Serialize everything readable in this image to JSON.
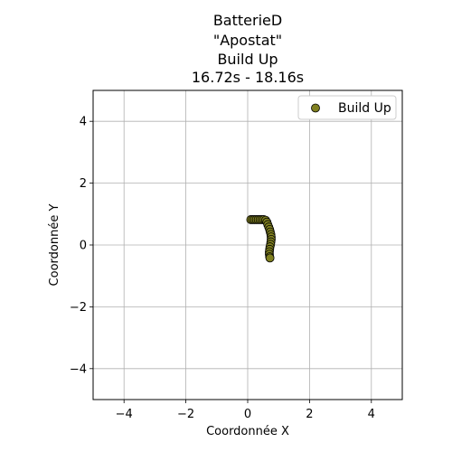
{
  "chart_data": {
    "type": "scatter",
    "title_lines": [
      "BatterieD",
      "\"Apostat\"",
      "Build Up",
      "16.72s - 18.16s"
    ],
    "xlabel": "Coordonnée X",
    "ylabel": "Coordonnée Y",
    "xlim": [
      -5,
      5
    ],
    "ylim": [
      -5,
      5
    ],
    "xticks": [
      -4,
      -2,
      0,
      2,
      4
    ],
    "yticks": [
      -4,
      -2,
      0,
      2,
      4
    ],
    "xtick_labels": [
      "−4",
      "−2",
      "0",
      "2",
      "4"
    ],
    "ytick_labels": [
      "−4",
      "−2",
      "0",
      "2",
      "4"
    ],
    "grid": true,
    "legend": {
      "position": "upper-right",
      "entries": [
        "Build Up"
      ]
    },
    "series": [
      {
        "name": "Build Up",
        "color": "#808020",
        "edge_color": "#000000",
        "points": [
          {
            "x": 0.1,
            "y": 0.82
          },
          {
            "x": 0.16,
            "y": 0.82
          },
          {
            "x": 0.22,
            "y": 0.82
          },
          {
            "x": 0.28,
            "y": 0.82
          },
          {
            "x": 0.34,
            "y": 0.82
          },
          {
            "x": 0.4,
            "y": 0.82
          },
          {
            "x": 0.46,
            "y": 0.82
          },
          {
            "x": 0.52,
            "y": 0.82
          },
          {
            "x": 0.58,
            "y": 0.8
          },
          {
            "x": 0.62,
            "y": 0.74
          },
          {
            "x": 0.65,
            "y": 0.66
          },
          {
            "x": 0.68,
            "y": 0.58
          },
          {
            "x": 0.71,
            "y": 0.5
          },
          {
            "x": 0.73,
            "y": 0.42
          },
          {
            "x": 0.75,
            "y": 0.34
          },
          {
            "x": 0.76,
            "y": 0.26
          },
          {
            "x": 0.76,
            "y": 0.18
          },
          {
            "x": 0.75,
            "y": 0.1
          },
          {
            "x": 0.74,
            "y": 0.02
          },
          {
            "x": 0.72,
            "y": -0.06
          },
          {
            "x": 0.71,
            "y": -0.14
          },
          {
            "x": 0.7,
            "y": -0.22
          },
          {
            "x": 0.7,
            "y": -0.3
          },
          {
            "x": 0.71,
            "y": -0.38
          },
          {
            "x": 0.72,
            "y": -0.42
          }
        ]
      }
    ]
  }
}
